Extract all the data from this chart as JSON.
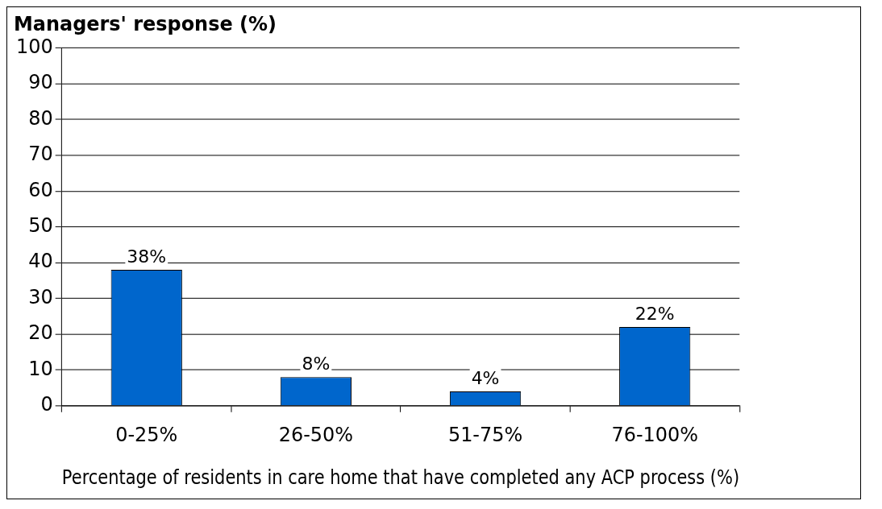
{
  "chart_data": {
    "type": "bar",
    "ylabel": "Managers' response (%)",
    "xlabel": "Percentage of residents in care home that have completed any ACP process (%)",
    "categories": [
      "0-25%",
      "26-50%",
      "51-75%",
      "76-100%"
    ],
    "values": [
      38,
      8,
      4,
      22
    ],
    "value_labels": [
      "38%",
      "8%",
      "4%",
      "22%"
    ],
    "color": "#0066cc",
    "ylim": [
      0,
      100
    ],
    "yticks": [
      0,
      10,
      20,
      30,
      40,
      50,
      60,
      70,
      80,
      90,
      100
    ],
    "grid": "y",
    "legend": false
  }
}
